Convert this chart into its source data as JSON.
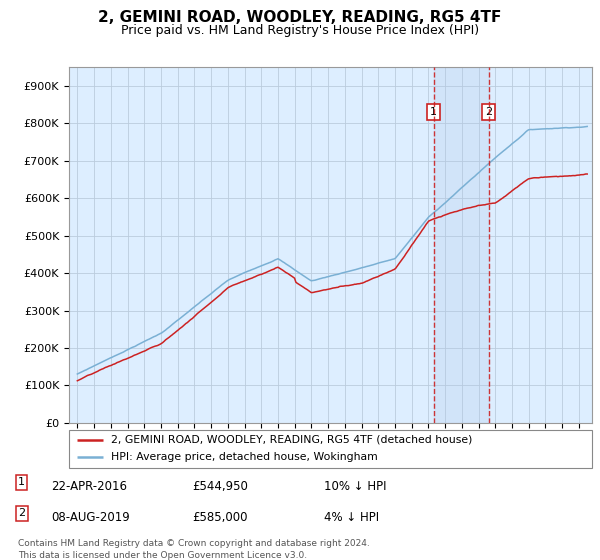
{
  "title": "2, GEMINI ROAD, WOODLEY, READING, RG5 4TF",
  "subtitle": "Price paid vs. HM Land Registry's House Price Index (HPI)",
  "hpi_color": "#7ab0d4",
  "price_color": "#cc2222",
  "plot_bg_color": "#ddeeff",
  "grid_color": "#bbccdd",
  "purchase1_x": 2016.31,
  "purchase1_price": 544950,
  "purchase2_x": 2019.6,
  "purchase2_price": 585000,
  "legend_line1": "2, GEMINI ROAD, WOODLEY, READING, RG5 4TF (detached house)",
  "legend_line2": "HPI: Average price, detached house, Wokingham",
  "ylim": [
    0,
    950000
  ],
  "yticks": [
    0,
    100000,
    200000,
    300000,
    400000,
    500000,
    600000,
    700000,
    800000,
    900000
  ],
  "ytick_labels": [
    "£0",
    "£100K",
    "£200K",
    "£300K",
    "£400K",
    "£500K",
    "£600K",
    "£700K",
    "£800K",
    "£900K"
  ],
  "xmin": 1994.5,
  "xmax": 2025.8,
  "copyright": "Contains HM Land Registry data © Crown copyright and database right 2024.\nThis data is licensed under the Open Government Licence v3.0."
}
